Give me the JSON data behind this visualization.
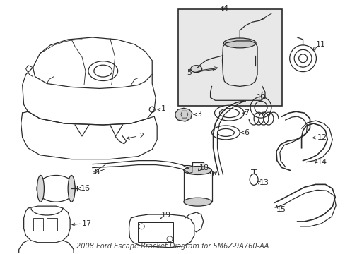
{
  "title": "2008 Ford Escape Bracket Diagram for 5M6Z-9A760-AA",
  "bg_color": "#ffffff",
  "line_color": "#2a2a2a",
  "label_color": "#111111",
  "label_fontsize": 8,
  "title_fontsize": 7,
  "fig_width": 4.89,
  "fig_height": 3.6,
  "dpi": 100
}
